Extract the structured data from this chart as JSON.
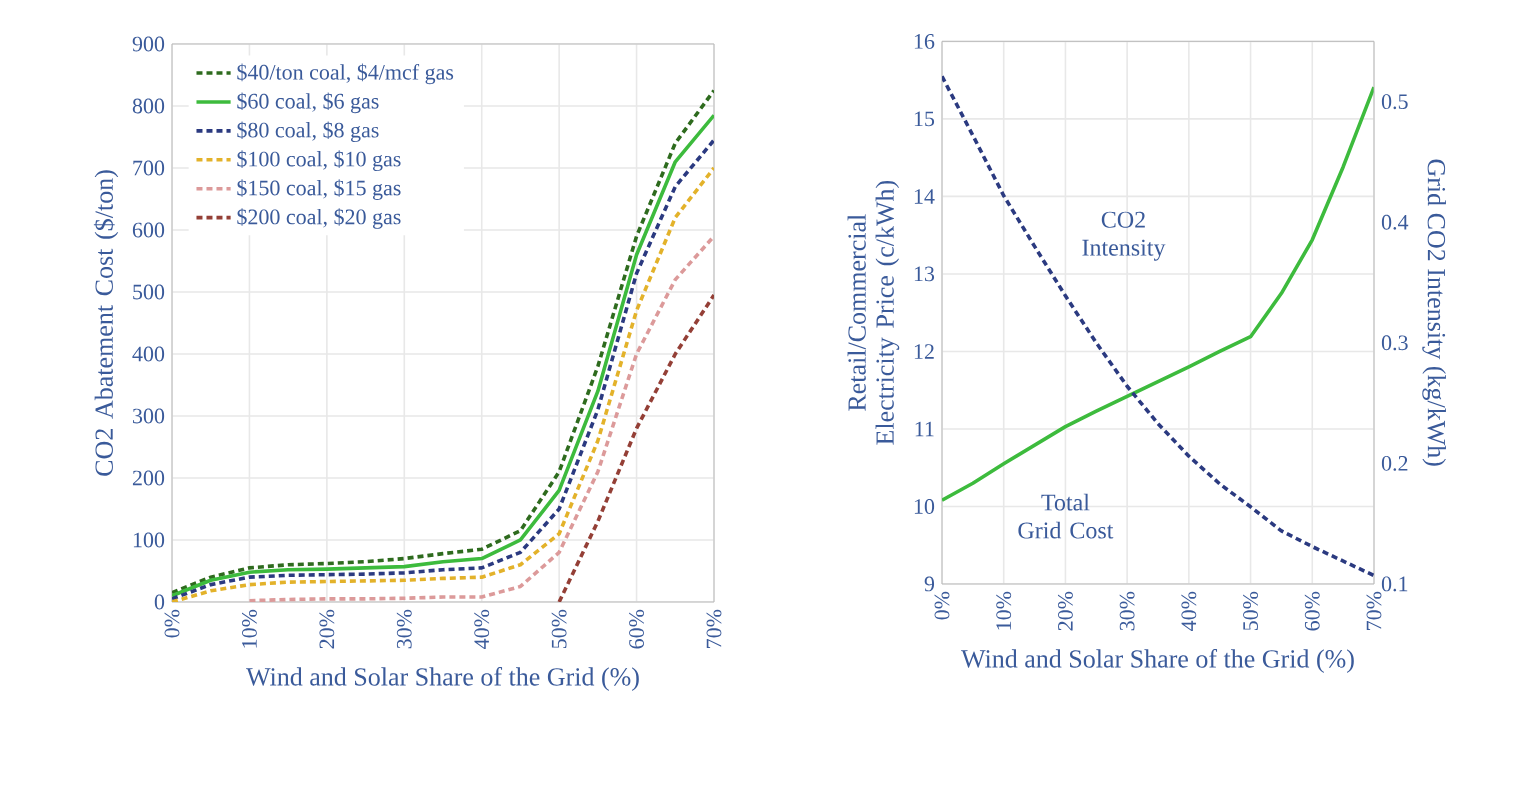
{
  "chart_data": [
    {
      "type": "line",
      "xlabel": "Wind and Solar Share of the Grid (%)",
      "ylabel": "CO2 Abatement Cost ($/ton)",
      "x": [
        0,
        5,
        10,
        15,
        20,
        25,
        30,
        35,
        40,
        45,
        50,
        55,
        60,
        65,
        70
      ],
      "xlim": [
        0,
        70
      ],
      "xticks": [
        {
          "value": 0,
          "label": "0%"
        },
        {
          "value": 10,
          "label": "10%"
        },
        {
          "value": 20,
          "label": "20%"
        },
        {
          "value": 30,
          "label": "30%"
        },
        {
          "value": 40,
          "label": "40%"
        },
        {
          "value": 50,
          "label": "50%"
        },
        {
          "value": 60,
          "label": "60%"
        },
        {
          "value": 70,
          "label": "70%"
        }
      ],
      "ylim": [
        0,
        900
      ],
      "yticks": [
        0,
        100,
        200,
        300,
        400,
        500,
        600,
        700,
        800,
        900
      ],
      "grid": true,
      "legend": "top left",
      "marker": "none",
      "series": [
        {
          "name": "$40/ton coal, $4/mcf gas",
          "color": "#2e6b1e",
          "line_style": "dashed",
          "values": [
            15,
            40,
            55,
            60,
            62,
            65,
            70,
            78,
            85,
            115,
            210,
            380,
            590,
            740,
            825
          ]
        },
        {
          "name": "$60 coal, $6 gas",
          "color": "#3dbb3d",
          "line_style": "solid",
          "values": [
            10,
            35,
            48,
            52,
            53,
            55,
            57,
            65,
            70,
            100,
            180,
            340,
            560,
            710,
            785
          ]
        },
        {
          "name": "$80 coal, $8 gas",
          "color": "#2b3a80",
          "line_style": "dashed",
          "values": [
            5,
            28,
            40,
            43,
            44,
            45,
            47,
            52,
            55,
            80,
            150,
            310,
            530,
            670,
            745
          ]
        },
        {
          "name": "$100 coal, $10 gas",
          "color": "#e3b22a",
          "line_style": "dashed",
          "values": [
            0,
            18,
            28,
            32,
            33,
            34,
            35,
            38,
            40,
            60,
            110,
            260,
            470,
            620,
            700
          ]
        },
        {
          "name": "$150 coal, $15 gas",
          "color": "#dc9a9a",
          "line_style": "dashed",
          "values": [
            null,
            null,
            2,
            4,
            5,
            5,
            6,
            8,
            8,
            25,
            80,
            210,
            400,
            520,
            590
          ]
        },
        {
          "name": "$200 coal, $20 gas",
          "color": "#943f36",
          "line_style": "dashed",
          "values": [
            null,
            null,
            null,
            null,
            null,
            null,
            null,
            null,
            null,
            null,
            0,
            130,
            280,
            400,
            495
          ]
        }
      ]
    },
    {
      "type": "line",
      "xlabel": "Wind and Solar Share of the Grid (%)",
      "ylabel": "Retail/Commercial Electricity Price (c/kWh)",
      "y2label": "Grid CO2 Intensity (kg/kWh)",
      "x": [
        0,
        5,
        10,
        15,
        20,
        25,
        30,
        35,
        40,
        45,
        50,
        55,
        60,
        65,
        70
      ],
      "xlim": [
        0,
        70
      ],
      "xticks": [
        {
          "value": 0,
          "label": "0%"
        },
        {
          "value": 10,
          "label": "10%"
        },
        {
          "value": 20,
          "label": "20%"
        },
        {
          "value": 30,
          "label": "30%"
        },
        {
          "value": 40,
          "label": "40%"
        },
        {
          "value": 50,
          "label": "50%"
        },
        {
          "value": 60,
          "label": "60%"
        },
        {
          "value": 70,
          "label": "70%"
        }
      ],
      "ylim": [
        9,
        16
      ],
      "yticks": [
        9,
        10,
        11,
        12,
        13,
        14,
        15,
        16
      ],
      "y2lim": [
        0.1,
        0.55
      ],
      "y2ticks": [
        {
          "value": 0.1,
          "label": "0.1"
        },
        {
          "value": 0.2,
          "label": "0.2"
        },
        {
          "value": 0.3,
          "label": "0.3"
        },
        {
          "value": 0.4,
          "label": "0.4"
        },
        {
          "value": 0.5,
          "label": "0.5"
        }
      ],
      "grid": true,
      "legend": false,
      "marker": "none",
      "series": [
        {
          "name": "Total Grid Cost",
          "color": "#3dbb3d",
          "line_style": "solid",
          "values": [
            10.08,
            10.3,
            10.55,
            10.79,
            11.03,
            11.23,
            11.42,
            11.61,
            11.8,
            12.0,
            12.19,
            12.75,
            13.44,
            14.38,
            15.41
          ]
        },
        {
          "name": "CO2 Intensity",
          "color": "#2b3a80",
          "line_style": "dashed",
          "axis": "y2",
          "values": [
            0.521,
            0.472,
            0.422,
            0.38,
            0.339,
            0.3,
            0.264,
            0.233,
            0.206,
            0.183,
            0.164,
            0.144,
            0.131,
            0.119,
            0.107
          ]
        }
      ]
    }
  ]
}
